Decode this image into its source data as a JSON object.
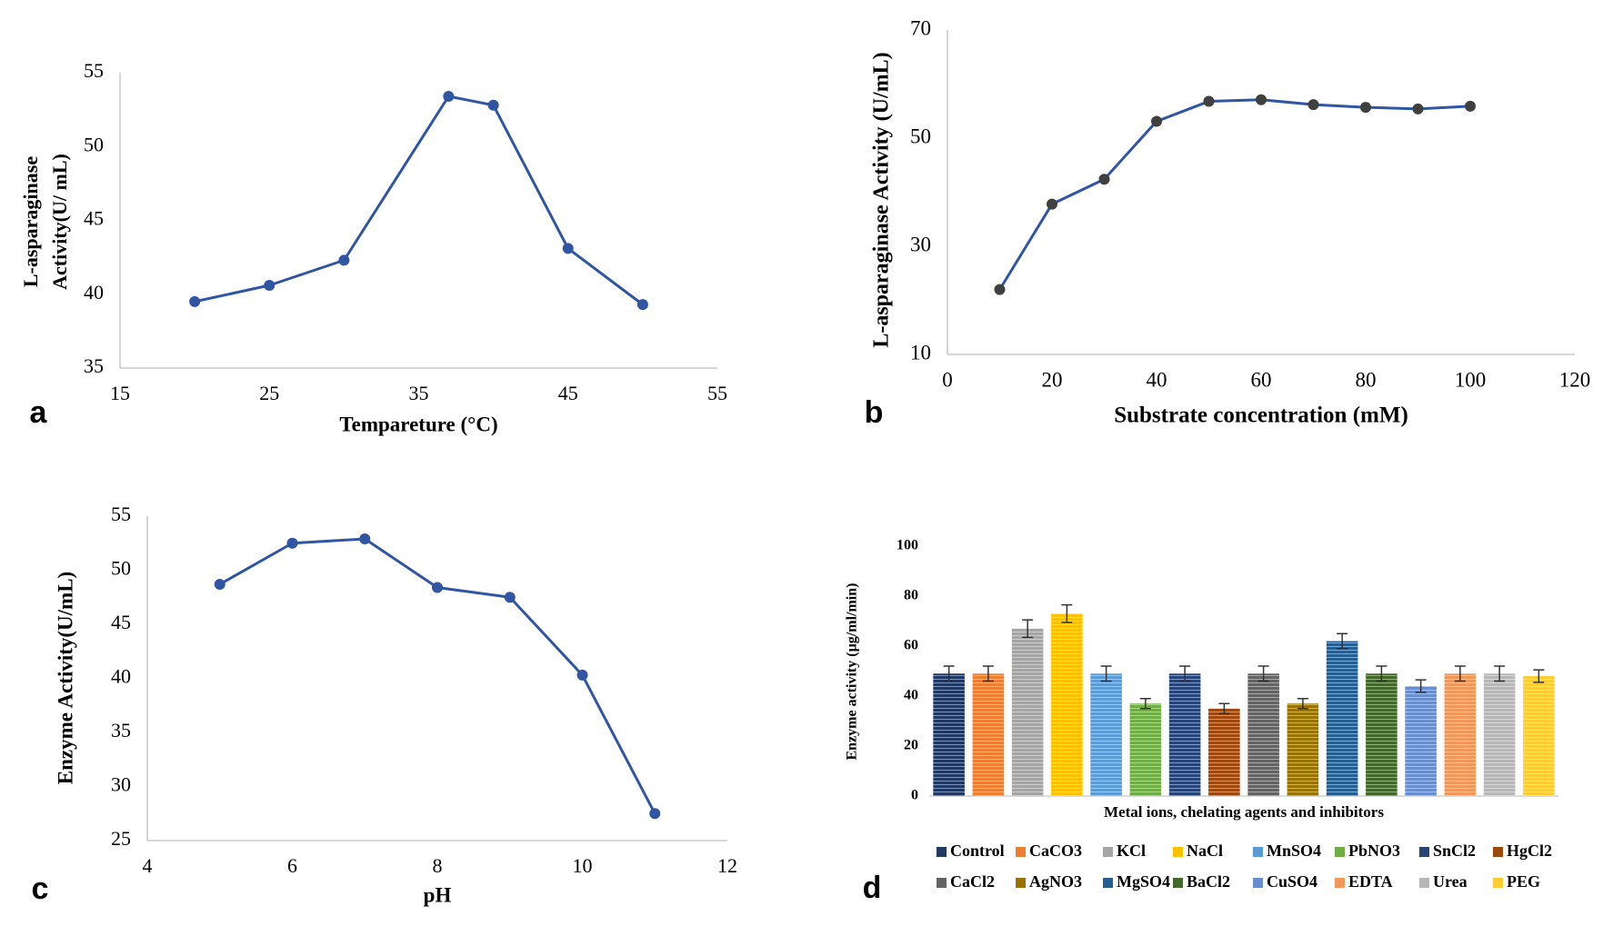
{
  "chart_data": [
    {
      "id": "a",
      "panel_label": "a",
      "type": "line",
      "title": "",
      "xlabel": "Tempareture (°C)",
      "ylabel_lines": [
        "L-asparaginase",
        "Activity(U/ mL)"
      ],
      "xlim": [
        15,
        55
      ],
      "ylim": [
        35,
        55
      ],
      "xticks": [
        15,
        25,
        35,
        45,
        55
      ],
      "yticks": [
        35,
        40,
        45,
        50,
        55
      ],
      "grid": false,
      "color": "#2f55a3",
      "x": [
        20,
        25,
        30,
        37,
        40,
        45,
        50
      ],
      "y": [
        39.5,
        40.6,
        42.3,
        53.4,
        52.8,
        43.1,
        39.3
      ]
    },
    {
      "id": "b",
      "panel_label": "b",
      "type": "line",
      "title": "",
      "xlabel": "Substrate concentration (mM)",
      "ylabel_lines": [
        "L-asparaginase Activity (U/mL)"
      ],
      "xlim": [
        0,
        120
      ],
      "ylim": [
        10,
        70
      ],
      "xticks": [
        0,
        20,
        40,
        60,
        80,
        100,
        120
      ],
      "yticks": [
        10,
        30,
        50,
        70
      ],
      "grid": false,
      "color": "#2f55a3",
      "marker_color": "#404040",
      "x": [
        10,
        20,
        30,
        40,
        50,
        60,
        70,
        80,
        90,
        100
      ],
      "y": [
        22.0,
        37.8,
        42.4,
        53.1,
        56.8,
        57.1,
        56.2,
        55.7,
        55.4,
        55.9
      ]
    },
    {
      "id": "c",
      "panel_label": "c",
      "type": "line",
      "title": "",
      "xlabel": "pH",
      "ylabel_lines": [
        "Enzyme Activity(U/mL)"
      ],
      "xlim": [
        4,
        12
      ],
      "ylim": [
        25,
        55
      ],
      "xticks": [
        4,
        6,
        8,
        10,
        12
      ],
      "yticks": [
        25,
        30,
        35,
        40,
        45,
        50,
        55
      ],
      "grid": false,
      "color": "#2f55a3",
      "x": [
        5,
        6,
        7,
        8,
        9,
        10,
        11
      ],
      "y": [
        48.7,
        52.5,
        52.9,
        48.4,
        47.5,
        40.3,
        27.5
      ]
    },
    {
      "id": "d",
      "panel_label": "d",
      "type": "bar",
      "title": "",
      "xlabel": "Metal ions, chelating agents and inhibitors",
      "ylabel_lines": [
        "Enzyme activity (µg/ml/min)"
      ],
      "ylim": [
        0,
        100
      ],
      "yticks": [
        0,
        20,
        40,
        60,
        80,
        100
      ],
      "grid": false,
      "legend_position": "bottom",
      "categories": [
        "Control",
        "CaCO3",
        "KCl",
        "NaCl",
        "MnSO4",
        "PbNO3",
        "SnCl2",
        "HgCl2",
        "CaCl2",
        "AgNO3",
        "MgSO4",
        "BaCl2",
        "CuSO4",
        "EDTA",
        "Urea",
        "PEG"
      ],
      "values": [
        49,
        49,
        67,
        73,
        49,
        37,
        49,
        35,
        49,
        37,
        62,
        49,
        44,
        49,
        49,
        48
      ],
      "errors": [
        3,
        3,
        3.5,
        3.5,
        3,
        2,
        3,
        2,
        3,
        2,
        3,
        3,
        2.5,
        3,
        3,
        2.5
      ],
      "colors": [
        "#1f3864",
        "#ed7d31",
        "#a5a5a5",
        "#ffc000",
        "#5b9bd5",
        "#70ad47",
        "#264478",
        "#9e480e",
        "#636363",
        "#997300",
        "#255e91",
        "#43682b",
        "#698ed0",
        "#f1975a",
        "#b7b7b7",
        "#ffcd33"
      ]
    }
  ]
}
